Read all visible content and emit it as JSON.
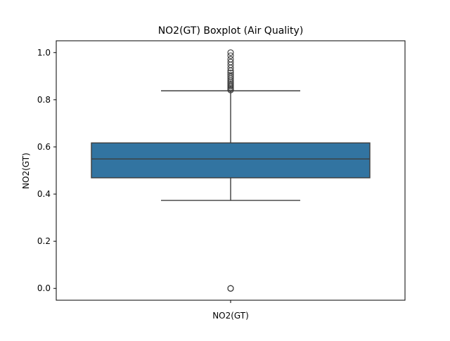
{
  "chart_data": {
    "type": "box",
    "title": "NO2(GT) Boxplot (Air Quality)",
    "xlabel": "",
    "ylabel": "NO2(GT)",
    "categories": [
      "NO2(GT)"
    ],
    "ylim": [
      -0.05,
      1.05
    ],
    "yticks": [
      0.0,
      0.2,
      0.4,
      0.6,
      0.8,
      1.0
    ],
    "ytick_labels": [
      "0.0",
      "0.2",
      "0.4",
      "0.6",
      "0.8",
      "1.0"
    ],
    "grid": false,
    "legend": "none",
    "box": {
      "whisker_low": 0.373,
      "q1": 0.469,
      "median": 0.549,
      "q3": 0.617,
      "whisker_high": 0.838
    },
    "outliers": [
      0.0,
      0.0,
      0.0,
      0.841,
      0.846,
      0.851,
      0.857,
      0.862,
      0.868,
      0.874,
      0.881,
      0.889,
      0.897,
      0.905,
      0.914,
      0.923,
      0.935,
      0.948,
      0.96,
      0.972,
      0.987,
      1.0
    ],
    "colors": {
      "box_fill": "#3274a1",
      "line": "#3d3d3d",
      "axes": "#000000"
    }
  }
}
